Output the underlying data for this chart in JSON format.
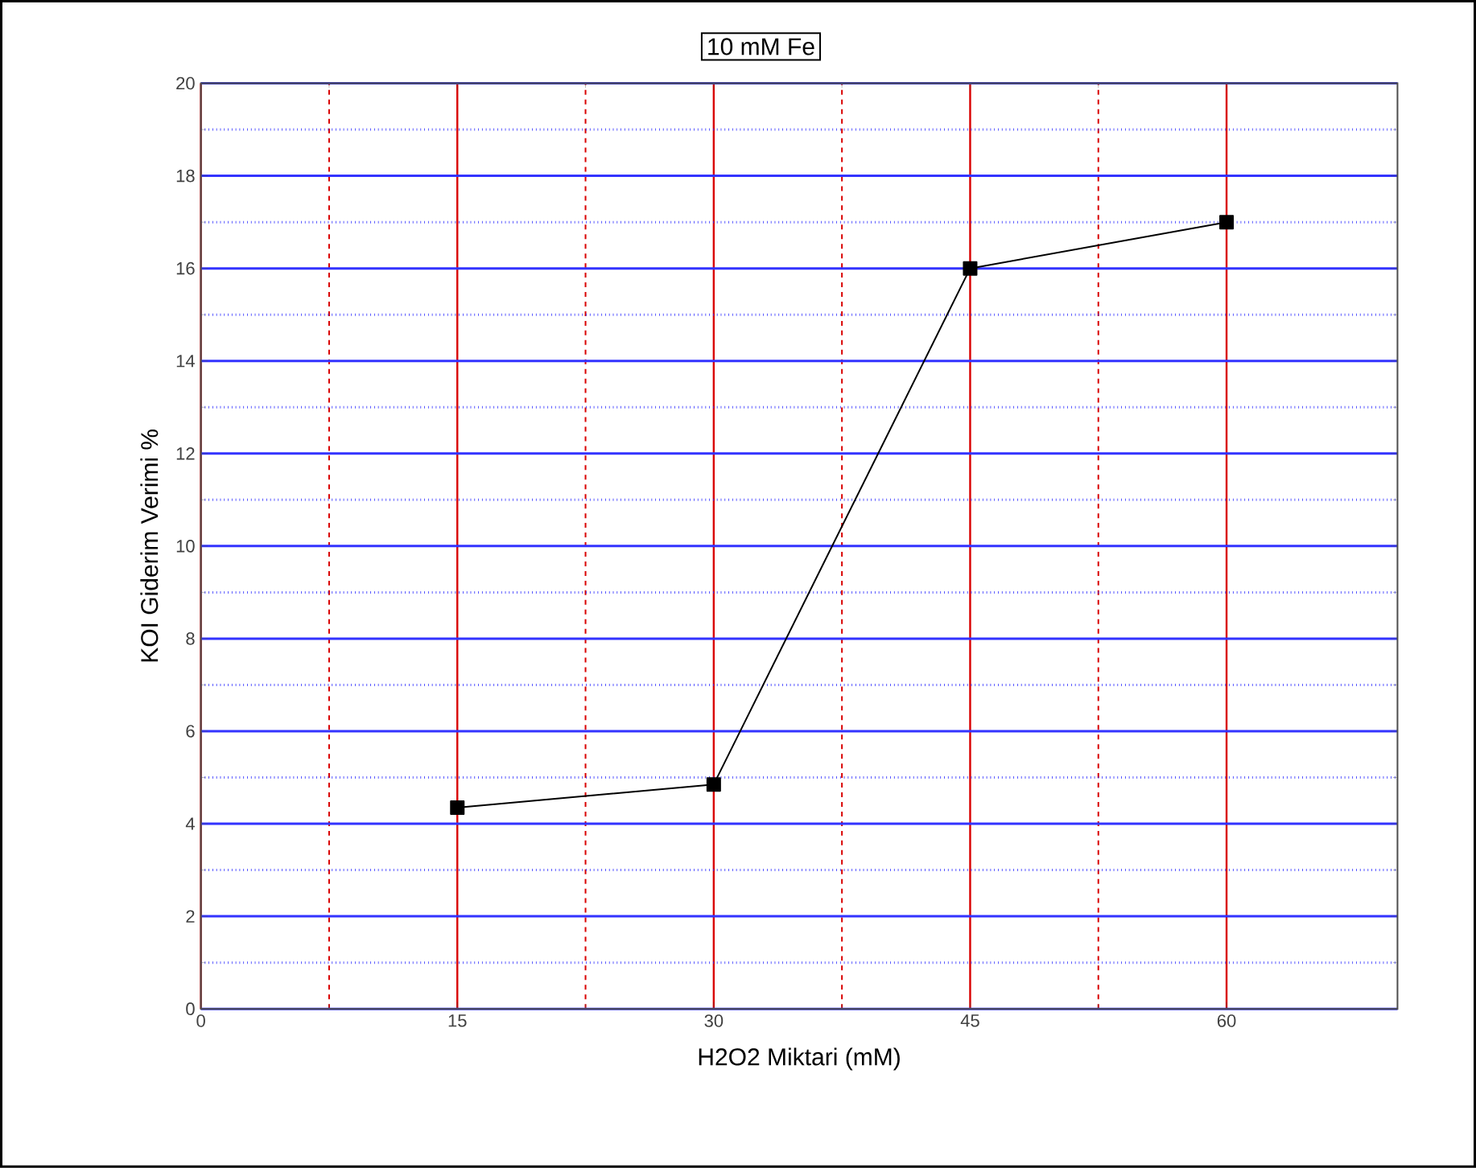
{
  "chart_data": {
    "type": "line",
    "title": "10 mM Fe",
    "xlabel": "H2O2 Miktari (mM)",
    "ylabel": "KOI Giderim Verimi %",
    "x": [
      15,
      30,
      45,
      60
    ],
    "series": [
      {
        "color": "#000000",
        "values": [
          4.35,
          4.85,
          16,
          17
        ]
      }
    ],
    "marker": "square",
    "line_style": "solid",
    "xlim": [
      0,
      70
    ],
    "xticks": [
      0,
      15,
      30,
      45,
      60
    ],
    "ylim": [
      0,
      20
    ],
    "yticks": [
      0,
      2,
      4,
      6,
      8,
      10,
      12,
      14,
      16,
      18,
      20
    ],
    "grid": true
  }
}
